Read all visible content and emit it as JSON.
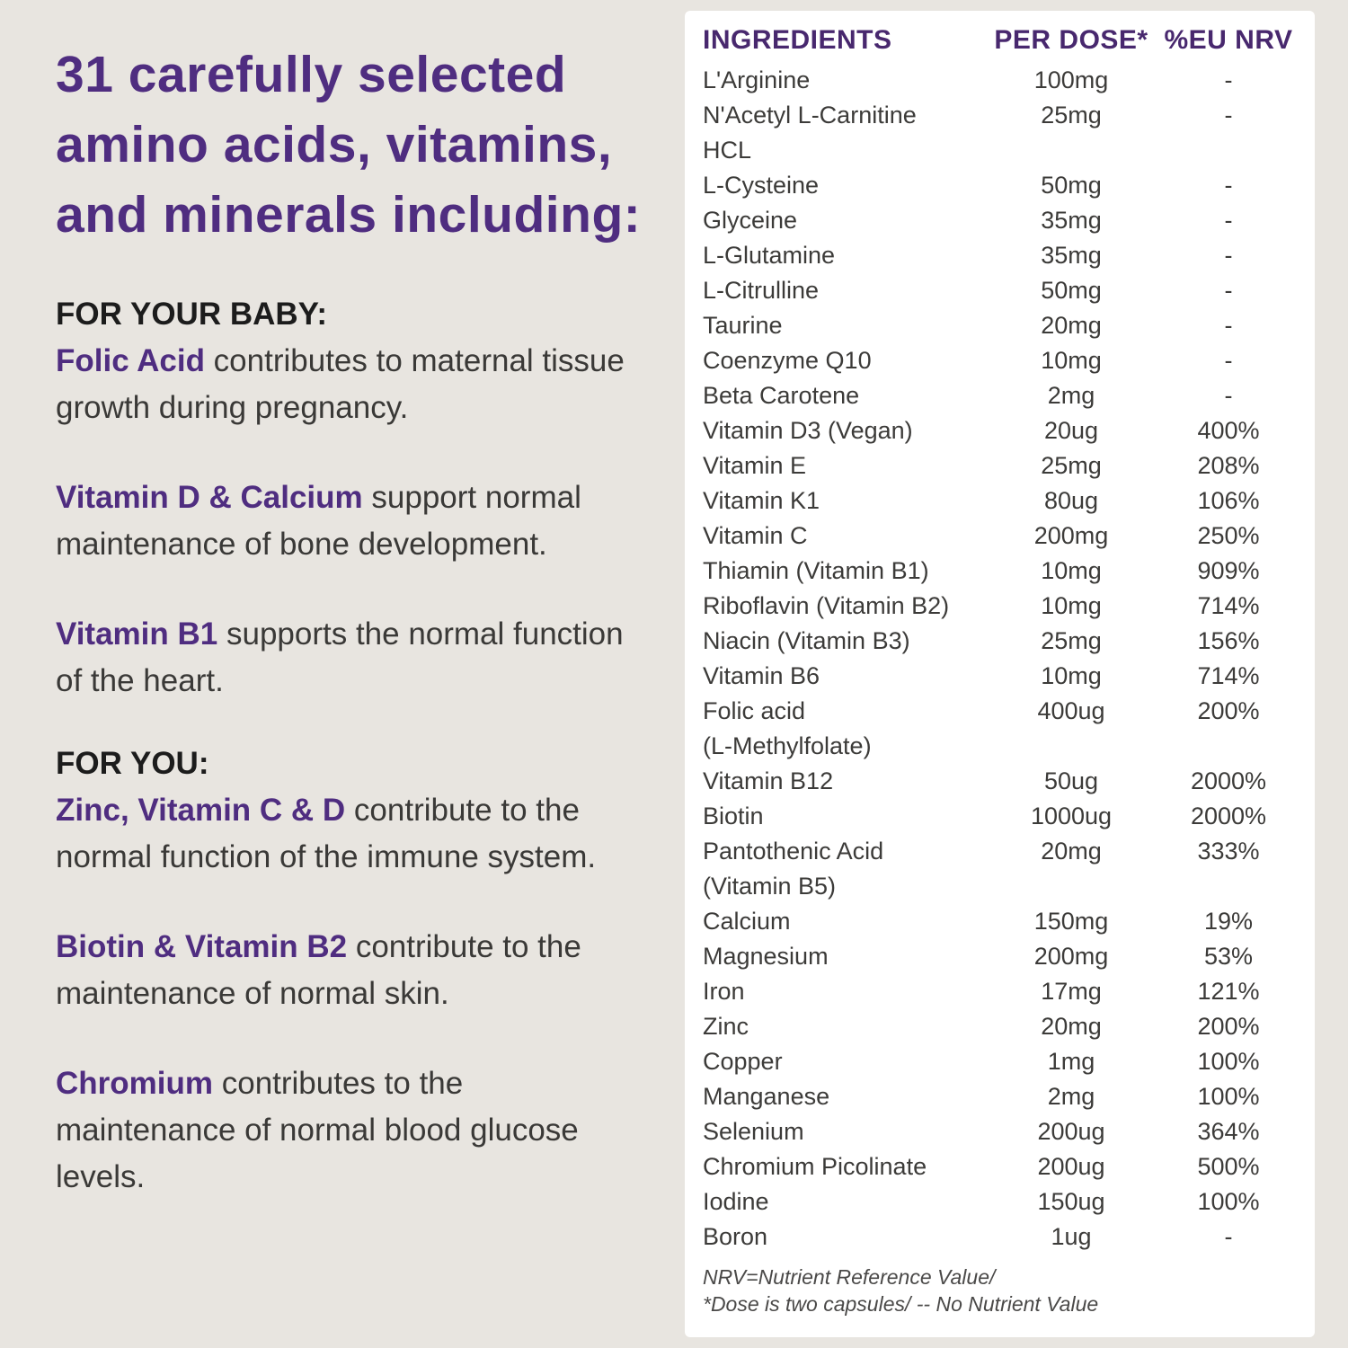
{
  "page": {
    "background_color": "#e8e5e0",
    "panel_color": "#ffffff",
    "accent_color": "#4f2d80"
  },
  "left": {
    "title": "31 carefully selected amino acids, vitamins, and minerals including:",
    "baby_header": "FOR YOUR BABY:",
    "baby_paras": [
      {
        "lead": "Folic Acid",
        "rest": " contributes to maternal tissue growth during pregnancy."
      },
      {
        "lead": "Vitamin D & Calcium",
        "rest": " support normal maintenance of bone development."
      },
      {
        "lead": "Vitamin B1",
        "rest": " supports the normal function of the heart."
      }
    ],
    "you_header": "FOR YOU:",
    "you_paras": [
      {
        "lead": "Zinc, Vitamin C & D",
        "rest": " contribute to the normal function of the immune system."
      },
      {
        "lead": "Biotin & Vitamin B2",
        "rest": " contribute to the maintenance of normal skin."
      },
      {
        "lead": "Chromium",
        "rest": " contributes to the maintenance of normal blood glucose levels."
      }
    ]
  },
  "table": {
    "headers": [
      "INGREDIENTS",
      "PER DOSE*",
      "%EU NRV"
    ],
    "rows": [
      {
        "name": "L'Arginine",
        "dose": "100mg",
        "nrv": "-"
      },
      {
        "name": "N'Acetyl L-Carnitine",
        "name2": "HCL",
        "dose": "25mg",
        "nrv": "-"
      },
      {
        "name": "L-Cysteine",
        "dose": "50mg",
        "nrv": "-"
      },
      {
        "name": "Glyceine",
        "dose": "35mg",
        "nrv": "-"
      },
      {
        "name": "L-Glutamine",
        "dose": "35mg",
        "nrv": "-"
      },
      {
        "name": "L-Citrulline",
        "dose": "50mg",
        "nrv": "-"
      },
      {
        "name": "Taurine",
        "dose": "20mg",
        "nrv": "-"
      },
      {
        "name": "Coenzyme Q10",
        "dose": "10mg",
        "nrv": "-"
      },
      {
        "name": "Beta Carotene",
        "dose": "2mg",
        "nrv": "-"
      },
      {
        "name": "Vitamin D3 (Vegan)",
        "dose": "20ug",
        "nrv": "400%"
      },
      {
        "name": "Vitamin E",
        "dose": "25mg",
        "nrv": "208%"
      },
      {
        "name": "Vitamin K1",
        "dose": "80ug",
        "nrv": "106%"
      },
      {
        "name": "Vitamin C",
        "dose": "200mg",
        "nrv": "250%"
      },
      {
        "name": "Thiamin (Vitamin B1)",
        "dose": "10mg",
        "nrv": "909%"
      },
      {
        "name": "Riboflavin (Vitamin B2)",
        "dose": "10mg",
        "nrv": "714%"
      },
      {
        "name": "Niacin (Vitamin B3)",
        "dose": "25mg",
        "nrv": "156%"
      },
      {
        "name": "Vitamin B6",
        "dose": "10mg",
        "nrv": "714%"
      },
      {
        "name": "Folic acid",
        "name2": "(L-Methylfolate)",
        "dose": "400ug",
        "nrv": "200%"
      },
      {
        "name": "Vitamin B12",
        "dose": "50ug",
        "nrv": "2000%"
      },
      {
        "name": "Biotin",
        "dose": "1000ug",
        "nrv": "2000%"
      },
      {
        "name": "Pantothenic Acid",
        "name2": "(Vitamin B5)",
        "dose": "20mg",
        "nrv": "333%"
      },
      {
        "name": "Calcium",
        "dose": "150mg",
        "nrv": "19%"
      },
      {
        "name": "Magnesium",
        "dose": "200mg",
        "nrv": "53%"
      },
      {
        "name": "Iron",
        "dose": "17mg",
        "nrv": "121%"
      },
      {
        "name": "Zinc",
        "dose": "20mg",
        "nrv": "200%"
      },
      {
        "name": "Copper",
        "dose": "1mg",
        "nrv": "100%"
      },
      {
        "name": "Manganese",
        "dose": "2mg",
        "nrv": "100%"
      },
      {
        "name": "Selenium",
        "dose": "200ug",
        "nrv": "364%"
      },
      {
        "name": "Chromium Picolinate",
        "dose": "200ug",
        "nrv": "500%"
      },
      {
        "name": "Iodine",
        "dose": "150ug",
        "nrv": "100%"
      },
      {
        "name": "Boron",
        "dose": "1ug",
        "nrv": "-"
      }
    ],
    "footnote_line1": "NRV=Nutrient Reference Value/",
    "footnote_line2": "*Dose is two capsules/ -- No Nutrient Value"
  }
}
